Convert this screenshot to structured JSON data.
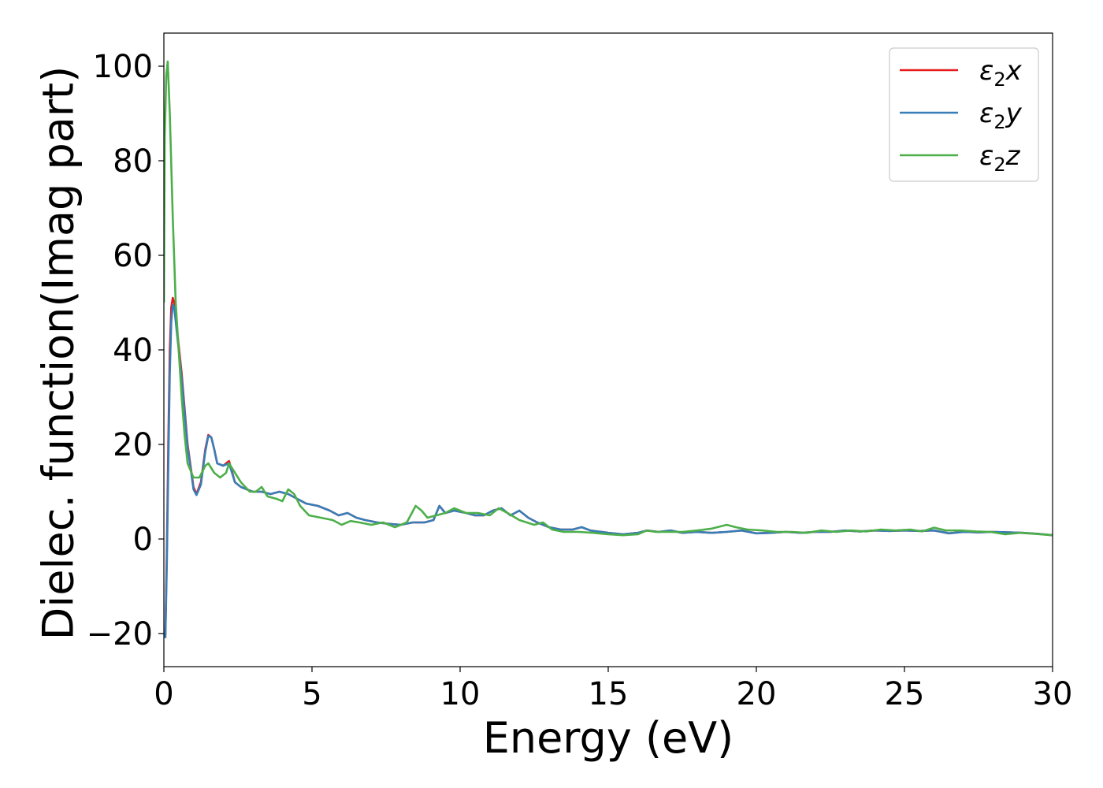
{
  "chart_data": {
    "type": "line",
    "title": "",
    "xlabel": "Energy (eV)",
    "ylabel": "Dielec. function(Imag part)",
    "xlim": [
      0,
      30
    ],
    "ylim": [
      -27,
      107
    ],
    "xticks": [
      0,
      5,
      10,
      15,
      20,
      25,
      30
    ],
    "xtick_labels": [
      "0",
      "5",
      "10",
      "15",
      "20",
      "25",
      "30"
    ],
    "yticks": [
      -20,
      0,
      20,
      40,
      60,
      80,
      100
    ],
    "ytick_labels": [
      "−20",
      "0",
      "20",
      "40",
      "60",
      "80",
      "100"
    ],
    "grid": false,
    "legend_position": "top-right",
    "series": [
      {
        "name": "ε₂x",
        "legend": {
          "base": "ε",
          "sub": "2",
          "comp": "x"
        },
        "color": "#e41a1c",
        "points": [
          [
            0,
            -20
          ],
          [
            0.05,
            -20.5
          ],
          [
            0.1,
            -2
          ],
          [
            0.15,
            20
          ],
          [
            0.2,
            40
          ],
          [
            0.25,
            49
          ],
          [
            0.3,
            51
          ],
          [
            0.35,
            50
          ],
          [
            0.45,
            44
          ],
          [
            0.6,
            35
          ],
          [
            0.8,
            20
          ],
          [
            1.0,
            11
          ],
          [
            1.1,
            9.5
          ],
          [
            1.25,
            12
          ],
          [
            1.4,
            19
          ],
          [
            1.5,
            22
          ],
          [
            1.6,
            21.5
          ],
          [
            1.7,
            19
          ],
          [
            1.8,
            16
          ],
          [
            2.0,
            15.5
          ],
          [
            2.2,
            16.5
          ],
          [
            2.4,
            12
          ],
          [
            2.6,
            11
          ],
          [
            2.8,
            10.5
          ],
          [
            3.0,
            10
          ],
          [
            3.3,
            10
          ],
          [
            3.6,
            9.5
          ],
          [
            3.9,
            10
          ],
          [
            4.2,
            9.5
          ],
          [
            4.5,
            8.5
          ],
          [
            4.8,
            7.5
          ],
          [
            5.2,
            7
          ],
          [
            5.6,
            6
          ],
          [
            5.9,
            5
          ],
          [
            6.2,
            5.5
          ],
          [
            6.5,
            4.5
          ],
          [
            6.8,
            4
          ],
          [
            7.2,
            3.5
          ],
          [
            7.6,
            3.2
          ],
          [
            8.0,
            3
          ],
          [
            8.4,
            3.5
          ],
          [
            8.8,
            3.5
          ],
          [
            9.1,
            4
          ],
          [
            9.3,
            7
          ],
          [
            9.5,
            5.5
          ],
          [
            9.8,
            6
          ],
          [
            10.2,
            5.5
          ],
          [
            10.5,
            5
          ],
          [
            10.8,
            5
          ],
          [
            11.1,
            6
          ],
          [
            11.4,
            6.5
          ],
          [
            11.7,
            5
          ],
          [
            12.0,
            6
          ],
          [
            12.3,
            4.5
          ],
          [
            12.6,
            3.5
          ],
          [
            13.0,
            2.5
          ],
          [
            13.4,
            2
          ],
          [
            13.8,
            2
          ],
          [
            14.1,
            2.5
          ],
          [
            14.4,
            1.8
          ],
          [
            15.0,
            1.3
          ],
          [
            15.5,
            1
          ],
          [
            16.0,
            1.3
          ],
          [
            16.3,
            1.8
          ],
          [
            16.7,
            1.5
          ],
          [
            17.1,
            1.8
          ],
          [
            17.5,
            1.3
          ],
          [
            18.0,
            1.5
          ],
          [
            18.5,
            1.3
          ],
          [
            19.0,
            1.5
          ],
          [
            19.5,
            1.8
          ],
          [
            20.0,
            1.2
          ],
          [
            20.5,
            1.3
          ],
          [
            21.0,
            1.5
          ],
          [
            21.5,
            1.3
          ],
          [
            22.0,
            1.5
          ],
          [
            22.5,
            1.5
          ],
          [
            23.0,
            1.8
          ],
          [
            23.5,
            1.6
          ],
          [
            24.0,
            1.8
          ],
          [
            24.5,
            1.7
          ],
          [
            25.0,
            1.8
          ],
          [
            25.5,
            1.7
          ],
          [
            26.0,
            1.8
          ],
          [
            26.5,
            1.2
          ],
          [
            27.0,
            1.5
          ],
          [
            27.5,
            1.4
          ],
          [
            28.0,
            1.5
          ],
          [
            28.5,
            1.4
          ],
          [
            29.0,
            1.3
          ],
          [
            29.5,
            1.1
          ],
          [
            30.0,
            0.8
          ]
        ]
      },
      {
        "name": "ε₂y",
        "legend": {
          "base": "ε",
          "sub": "2",
          "comp": "y"
        },
        "color": "#377eb8",
        "points": [
          [
            0,
            -20
          ],
          [
            0.05,
            -20.8
          ],
          [
            0.1,
            -5
          ],
          [
            0.15,
            15
          ],
          [
            0.2,
            35
          ],
          [
            0.25,
            46
          ],
          [
            0.3,
            49.5
          ],
          [
            0.35,
            49
          ],
          [
            0.45,
            43
          ],
          [
            0.6,
            34
          ],
          [
            0.8,
            19.5
          ],
          [
            1.0,
            10.5
          ],
          [
            1.1,
            9.3
          ],
          [
            1.25,
            11.5
          ],
          [
            1.4,
            18.5
          ],
          [
            1.5,
            21.8
          ],
          [
            1.6,
            21.5
          ],
          [
            1.7,
            19
          ],
          [
            1.8,
            16
          ],
          [
            2.0,
            15.5
          ],
          [
            2.2,
            16
          ],
          [
            2.4,
            12
          ],
          [
            2.6,
            11
          ],
          [
            2.8,
            10.5
          ],
          [
            3.0,
            10
          ],
          [
            3.3,
            10
          ],
          [
            3.6,
            9.5
          ],
          [
            3.9,
            10
          ],
          [
            4.2,
            9.5
          ],
          [
            4.5,
            8.5
          ],
          [
            4.8,
            7.5
          ],
          [
            5.2,
            7
          ],
          [
            5.6,
            6
          ],
          [
            5.9,
            5
          ],
          [
            6.2,
            5.5
          ],
          [
            6.5,
            4.5
          ],
          [
            6.8,
            4
          ],
          [
            7.2,
            3.5
          ],
          [
            7.6,
            3.2
          ],
          [
            8.0,
            3
          ],
          [
            8.4,
            3.5
          ],
          [
            8.8,
            3.5
          ],
          [
            9.1,
            4
          ],
          [
            9.3,
            7
          ],
          [
            9.5,
            5.5
          ],
          [
            9.8,
            6
          ],
          [
            10.2,
            5.5
          ],
          [
            10.5,
            5
          ],
          [
            10.8,
            5
          ],
          [
            11.1,
            6
          ],
          [
            11.4,
            6.5
          ],
          [
            11.7,
            5
          ],
          [
            12.0,
            6
          ],
          [
            12.3,
            4.5
          ],
          [
            12.6,
            3.5
          ],
          [
            13.0,
            2.5
          ],
          [
            13.4,
            2
          ],
          [
            13.8,
            2
          ],
          [
            14.1,
            2.5
          ],
          [
            14.4,
            1.8
          ],
          [
            15.0,
            1.3
          ],
          [
            15.5,
            1
          ],
          [
            16.0,
            1.3
          ],
          [
            16.3,
            1.8
          ],
          [
            16.7,
            1.5
          ],
          [
            17.1,
            1.8
          ],
          [
            17.5,
            1.3
          ],
          [
            18.0,
            1.5
          ],
          [
            18.5,
            1.3
          ],
          [
            19.0,
            1.5
          ],
          [
            19.5,
            1.8
          ],
          [
            20.0,
            1.2
          ],
          [
            20.5,
            1.3
          ],
          [
            21.0,
            1.5
          ],
          [
            21.5,
            1.3
          ],
          [
            22.0,
            1.5
          ],
          [
            22.5,
            1.5
          ],
          [
            23.0,
            1.8
          ],
          [
            23.5,
            1.6
          ],
          [
            24.0,
            1.8
          ],
          [
            24.5,
            1.7
          ],
          [
            25.0,
            1.8
          ],
          [
            25.5,
            1.7
          ],
          [
            26.0,
            1.8
          ],
          [
            26.5,
            1.2
          ],
          [
            27.0,
            1.5
          ],
          [
            27.5,
            1.4
          ],
          [
            28.0,
            1.5
          ],
          [
            28.5,
            1.4
          ],
          [
            29.0,
            1.3
          ],
          [
            29.5,
            1.1
          ],
          [
            30.0,
            0.8
          ]
        ]
      },
      {
        "name": "ε₂z",
        "legend": {
          "base": "ε",
          "sub": "2",
          "comp": "z"
        },
        "color": "#4daf4a",
        "points": [
          [
            0,
            50
          ],
          [
            0.03,
            85
          ],
          [
            0.08,
            98
          ],
          [
            0.13,
            101
          ],
          [
            0.2,
            90
          ],
          [
            0.3,
            68
          ],
          [
            0.4,
            50
          ],
          [
            0.5,
            40
          ],
          [
            0.6,
            30
          ],
          [
            0.7,
            22
          ],
          [
            0.8,
            16
          ],
          [
            1.0,
            13
          ],
          [
            1.2,
            13
          ],
          [
            1.4,
            15.5
          ],
          [
            1.5,
            16
          ],
          [
            1.7,
            14
          ],
          [
            1.9,
            13
          ],
          [
            2.1,
            14
          ],
          [
            2.2,
            16
          ],
          [
            2.4,
            14
          ],
          [
            2.6,
            12
          ],
          [
            2.9,
            10
          ],
          [
            3.1,
            10
          ],
          [
            3.3,
            11
          ],
          [
            3.5,
            9
          ],
          [
            3.8,
            8.5
          ],
          [
            4.0,
            8
          ],
          [
            4.2,
            10.5
          ],
          [
            4.4,
            9.5
          ],
          [
            4.6,
            7
          ],
          [
            4.9,
            5
          ],
          [
            5.3,
            4.5
          ],
          [
            5.7,
            4
          ],
          [
            6.0,
            3
          ],
          [
            6.3,
            3.8
          ],
          [
            6.6,
            3.5
          ],
          [
            7.0,
            3
          ],
          [
            7.4,
            3.5
          ],
          [
            7.8,
            2.5
          ],
          [
            8.2,
            3.5
          ],
          [
            8.5,
            7
          ],
          [
            8.7,
            6
          ],
          [
            8.9,
            4.5
          ],
          [
            9.2,
            5
          ],
          [
            9.5,
            5.5
          ],
          [
            9.8,
            6.5
          ],
          [
            10.2,
            5.5
          ],
          [
            10.6,
            5.5
          ],
          [
            11.0,
            5
          ],
          [
            11.3,
            6.5
          ],
          [
            11.6,
            5.5
          ],
          [
            12.0,
            4
          ],
          [
            12.5,
            3
          ],
          [
            12.8,
            3.5
          ],
          [
            13.1,
            2
          ],
          [
            13.5,
            1.5
          ],
          [
            14.0,
            1.5
          ],
          [
            14.5,
            1.3
          ],
          [
            15.0,
            1
          ],
          [
            15.5,
            0.8
          ],
          [
            16.0,
            1
          ],
          [
            16.3,
            1.8
          ],
          [
            16.6,
            1.5
          ],
          [
            17.0,
            1.5
          ],
          [
            17.5,
            1.5
          ],
          [
            18.0,
            1.8
          ],
          [
            18.5,
            2.2
          ],
          [
            19.0,
            3
          ],
          [
            19.3,
            2.5
          ],
          [
            19.7,
            2
          ],
          [
            20.2,
            1.8
          ],
          [
            20.7,
            1.5
          ],
          [
            21.2,
            1.5
          ],
          [
            21.7,
            1.3
          ],
          [
            22.2,
            1.8
          ],
          [
            22.7,
            1.5
          ],
          [
            23.2,
            1.8
          ],
          [
            23.7,
            1.6
          ],
          [
            24.2,
            2
          ],
          [
            24.7,
            1.8
          ],
          [
            25.2,
            2
          ],
          [
            25.6,
            1.6
          ],
          [
            26.0,
            2.4
          ],
          [
            26.4,
            1.8
          ],
          [
            26.9,
            1.8
          ],
          [
            27.4,
            1.6
          ],
          [
            27.9,
            1.5
          ],
          [
            28.4,
            1
          ],
          [
            28.9,
            1.3
          ],
          [
            29.4,
            1.1
          ],
          [
            30.0,
            0.8
          ]
        ]
      }
    ]
  }
}
